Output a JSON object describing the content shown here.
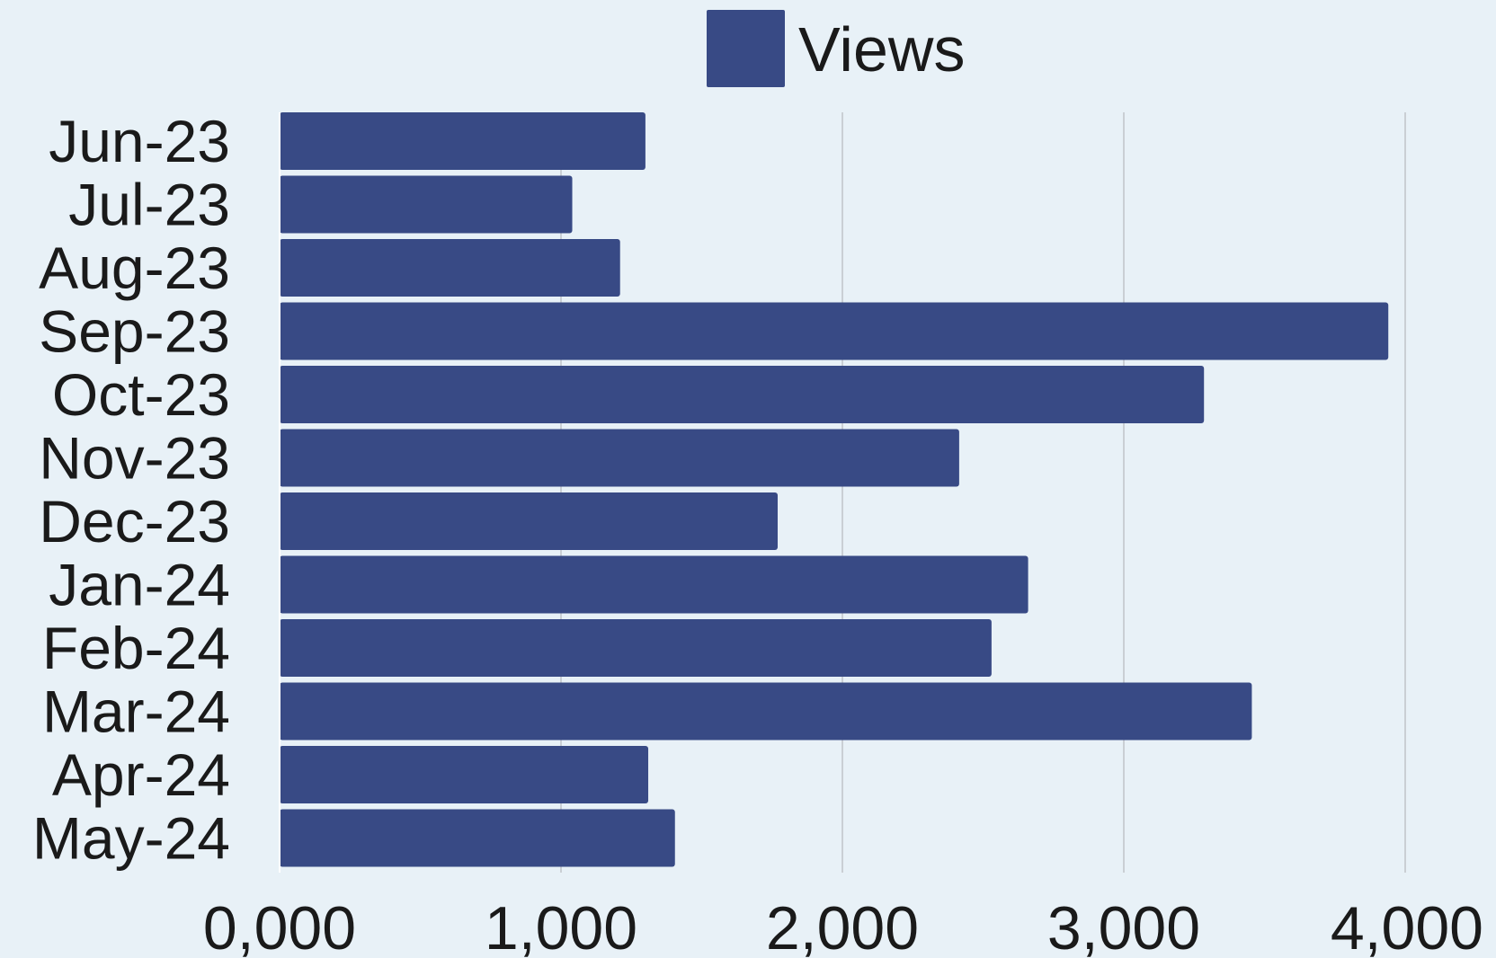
{
  "chart_data": {
    "type": "bar",
    "orientation": "horizontal",
    "categories": [
      "Jun-23",
      "Jul-23",
      "Aug-23",
      "Sep-23",
      "Oct-23",
      "Nov-23",
      "Dec-23",
      "Jan-24",
      "Feb-24",
      "Mar-24",
      "Apr-24",
      "May-24"
    ],
    "series": [
      {
        "name": "Views",
        "color": "#384a85",
        "values": [
          1300,
          1040,
          1210,
          3940,
          3285,
          2415,
          1770,
          2660,
          2530,
          3455,
          1310,
          1405
        ]
      }
    ],
    "x_ticks": [
      "0,000",
      "1,000",
      "2,000",
      "3,000",
      "4,000"
    ],
    "xlim": [
      0,
      4000
    ],
    "grid": "vertical",
    "legend": "top-center",
    "background": "#e8f1f7",
    "grid_color": "#c0c4c8"
  }
}
